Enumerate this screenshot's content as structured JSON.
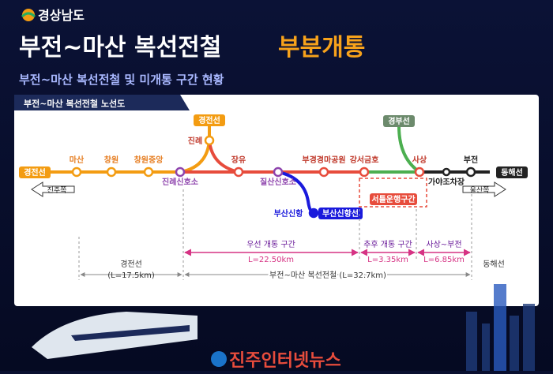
{
  "header": {
    "logo": "경상남도",
    "title": "부전~마산 복선전철",
    "title_highlight": "부분개통",
    "subtitle": "부전~마산 복선전철 및 미개통 구간 현황"
  },
  "map": {
    "title": "부전~마산 복선전철 노선도",
    "stations": [
      {
        "label": "마산"
      },
      {
        "label": "창원"
      },
      {
        "label": "창원중앙"
      },
      {
        "label": "진례신호소"
      },
      {
        "label": "진례"
      },
      {
        "label": "장유"
      },
      {
        "label": "질산신호소"
      },
      {
        "label": "부경경마공원"
      },
      {
        "label": "강서금호"
      },
      {
        "label": "사상"
      },
      {
        "label": "가야조차장"
      },
      {
        "label": "부전"
      },
      {
        "label": "부산신항"
      }
    ],
    "lines": {
      "west": "경전선",
      "north": "경전선",
      "gyeongbu": "경부선",
      "east": "동해선",
      "sinhang": "부산신항선"
    },
    "directions": {
      "west": "진주쪽",
      "east": "울산쪽"
    },
    "shuttle": "서틀운행구간"
  },
  "sections": {
    "first_open": {
      "label": "우선 개통 구간",
      "length": "L=22.50km"
    },
    "later_open": {
      "label": "추후 개통 구간",
      "length": "L=3.35km"
    },
    "sasang_bujeon": {
      "label": "사상~부전",
      "length": "L=6.85km"
    },
    "gyeongjeon": {
      "label": "경전선",
      "length": "(L=17.5km)"
    },
    "total": "부전~마산 복선전철 (L=32.7km)",
    "donghae": "동해선"
  },
  "footer": {
    "brand": "진주인터넷뉴스"
  }
}
